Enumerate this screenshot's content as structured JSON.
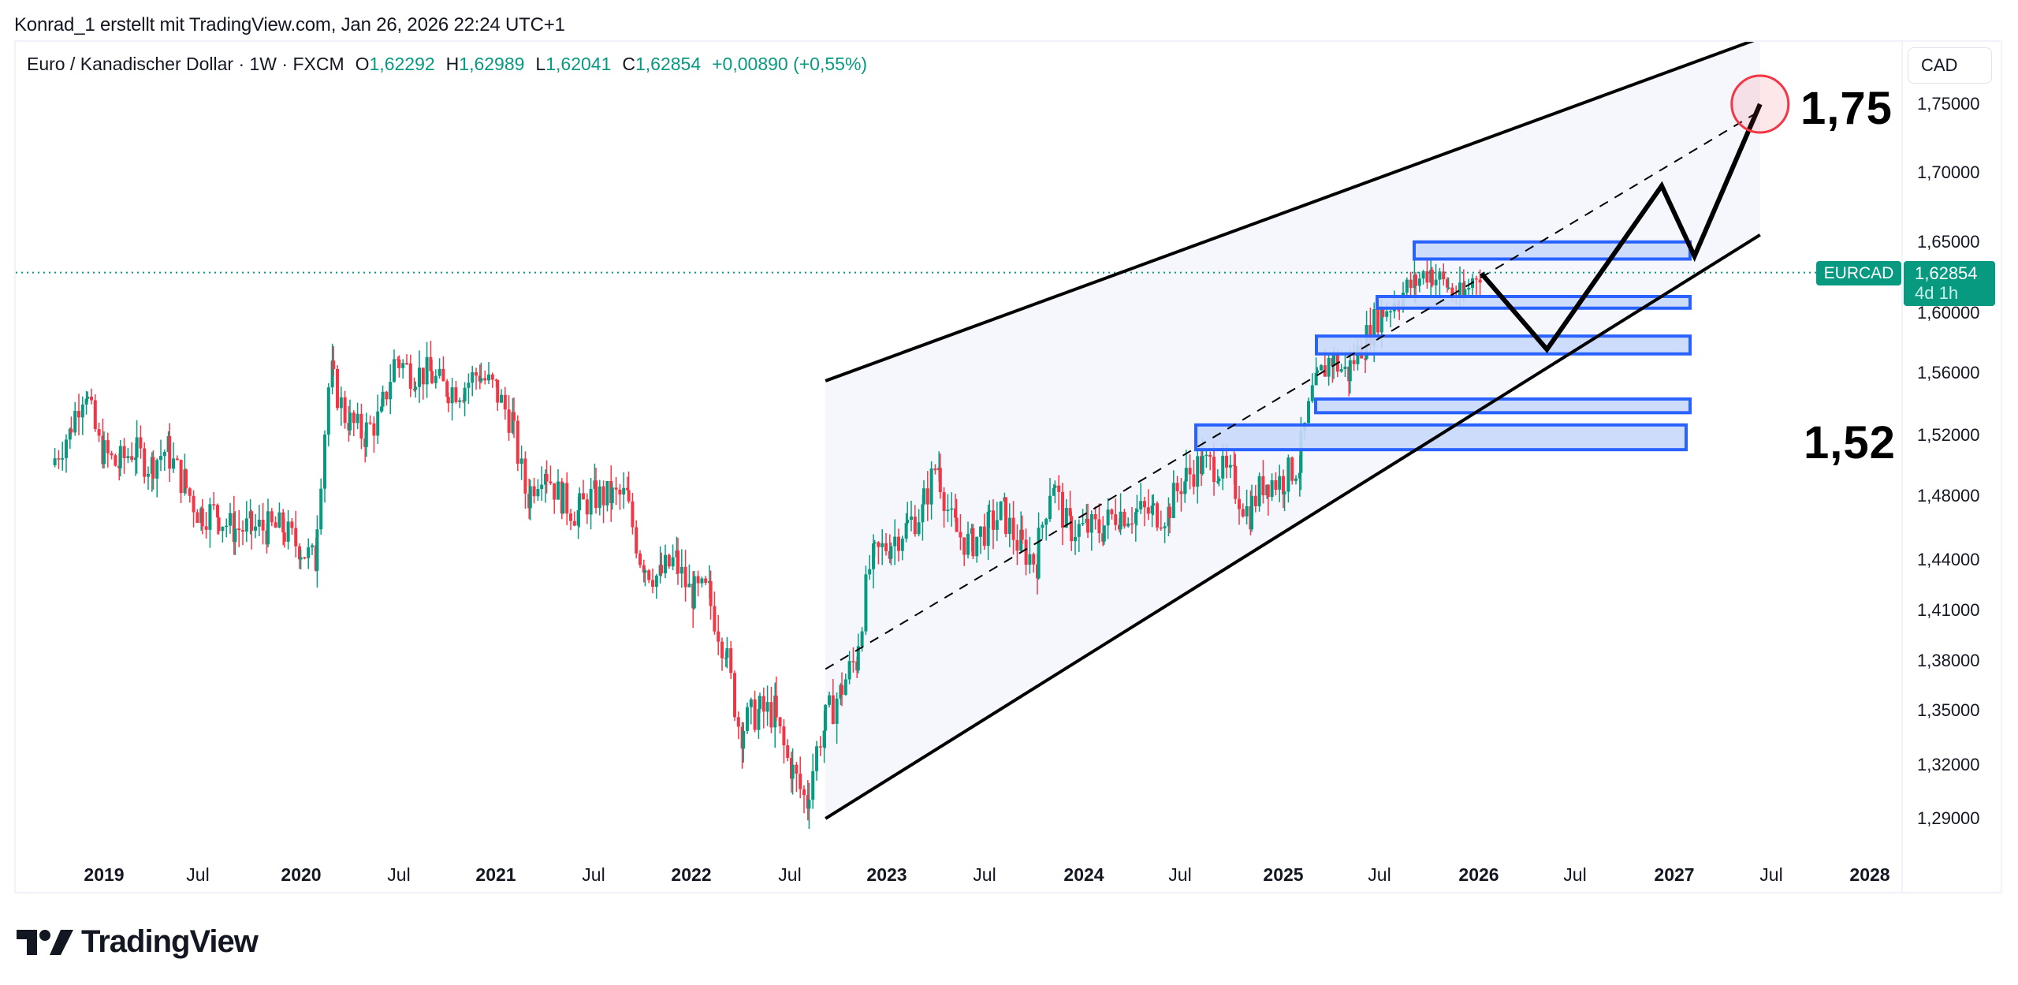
{
  "caption": "Konrad_1 erstellt mit TradingView.com, Jan 26, 2026 22:24 UTC+1",
  "legend": {
    "symbol_text": "Euro / Kanadischer Dollar · 1W · FXCM",
    "o_label": "O",
    "o_value": "1,62292",
    "h_label": "H",
    "h_value": "1,62989",
    "l_label": "L",
    "l_value": "1,62041",
    "c_label": "C",
    "c_value": "1,62854",
    "change": "+0,00890 (+0,55%)"
  },
  "currency_button": "CAD",
  "price_axis": {
    "ticks": [
      "1,75000",
      "1,70000",
      "1,65000",
      "1,60000",
      "1,56000",
      "1,52000",
      "1,48000",
      "1,44000",
      "1,41000",
      "1,38000",
      "1,35000",
      "1,32000",
      "1,29000"
    ]
  },
  "time_axis": {
    "labels": [
      "2019",
      "Jul",
      "2020",
      "Jul",
      "2021",
      "Jul",
      "2022",
      "Jul",
      "2023",
      "Jul",
      "2024",
      "Jul",
      "2025",
      "Jul",
      "2026",
      "Jul",
      "2027",
      "Jul",
      "2028"
    ]
  },
  "last_price": {
    "symbol_tag": "EURCAD",
    "value": "1,62854",
    "countdown": "4d 1h"
  },
  "annotations": {
    "target_label": "1,75",
    "support_label": "1,52"
  },
  "branding": {
    "logo_text": "TradingView"
  },
  "colors": {
    "up": "#089981",
    "down": "#f23645",
    "zone_fill": "#c9d8fb",
    "zone_border": "#2962ff",
    "channel_fill": "#f5f7fd",
    "target_circle": "#f23645"
  },
  "chart_data": {
    "type": "candlestick",
    "title": "Euro / Kanadischer Dollar · 1W · FXCM",
    "symbol": "EURCAD",
    "timeframe": "1W",
    "scale": "log",
    "ylim": [
      1.27,
      1.79
    ],
    "xlabel": "",
    "ylabel": "CAD",
    "last_ohlc": {
      "open": 1.62292,
      "high": 1.62989,
      "low": 1.62041,
      "close": 1.62854,
      "change": 0.0089,
      "change_pct": 0.55
    },
    "monthly_closes": {
      "start": "2018-10",
      "values": [
        1.5,
        1.52,
        1.55,
        1.51,
        1.5,
        1.51,
        1.5,
        1.51,
        1.49,
        1.47,
        1.47,
        1.46,
        1.46,
        1.46,
        1.46,
        1.45,
        1.44,
        1.56,
        1.53,
        1.52,
        1.53,
        1.57,
        1.56,
        1.56,
        1.55,
        1.55,
        1.56,
        1.55,
        1.53,
        1.48,
        1.5,
        1.48,
        1.47,
        1.48,
        1.48,
        1.48,
        1.44,
        1.43,
        1.44,
        1.42,
        1.42,
        1.39,
        1.34,
        1.35,
        1.35,
        1.32,
        1.3,
        1.34,
        1.36,
        1.38,
        1.44,
        1.45,
        1.46,
        1.47,
        1.5,
        1.46,
        1.45,
        1.46,
        1.47,
        1.45,
        1.44,
        1.49,
        1.46,
        1.46,
        1.46,
        1.47,
        1.47,
        1.47,
        1.47,
        1.49,
        1.5,
        1.5,
        1.49,
        1.47,
        1.49,
        1.49,
        1.5,
        1.55,
        1.57,
        1.56,
        1.58,
        1.6,
        1.61,
        1.62,
        1.63,
        1.62,
        1.61,
        1.63
      ]
    },
    "drawings": {
      "parallel_channel": {
        "upper": [
          [
            "2022-09",
            1.555
          ],
          [
            "2027-06",
            1.8
          ]
        ],
        "middle_dashed": [
          [
            "2022-09",
            1.375
          ],
          [
            "2027-06",
            1.745
          ]
        ],
        "lower": [
          [
            "2022-09",
            1.29
          ],
          [
            "2027-06",
            1.655
          ]
        ]
      },
      "zones": [
        {
          "top": 1.65,
          "bottom": 1.638
        },
        {
          "top": 1.612,
          "bottom": 1.604
        },
        {
          "top": 1.585,
          "bottom": 1.573
        },
        {
          "top": 1.543,
          "bottom": 1.534
        },
        {
          "top": 1.526,
          "bottom": 1.51
        }
      ],
      "projected_path": [
        [
          "2026-01",
          1.628
        ],
        [
          "2026-05",
          1.576
        ],
        [
          "2026-12",
          1.69
        ],
        [
          "2027-02",
          1.64
        ],
        [
          "2027-06",
          1.75
        ]
      ],
      "target": {
        "price": 1.75,
        "label": "1,75"
      },
      "support_label": {
        "price": 1.52,
        "label": "1,52"
      }
    }
  }
}
